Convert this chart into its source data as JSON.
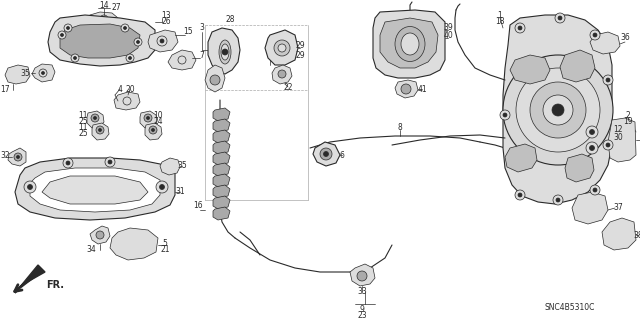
{
  "background_color": "#f5f5f0",
  "diagram_color": "#2a2a2a",
  "label_SNC": "SNC4B5310C",
  "label_FR": "FR.",
  "figsize": [
    6.4,
    3.19
  ],
  "dpi": 100,
  "white": "#ffffff",
  "gray_fill": "#cccccc",
  "light_gray": "#e8e8e8",
  "mid_gray": "#999999"
}
